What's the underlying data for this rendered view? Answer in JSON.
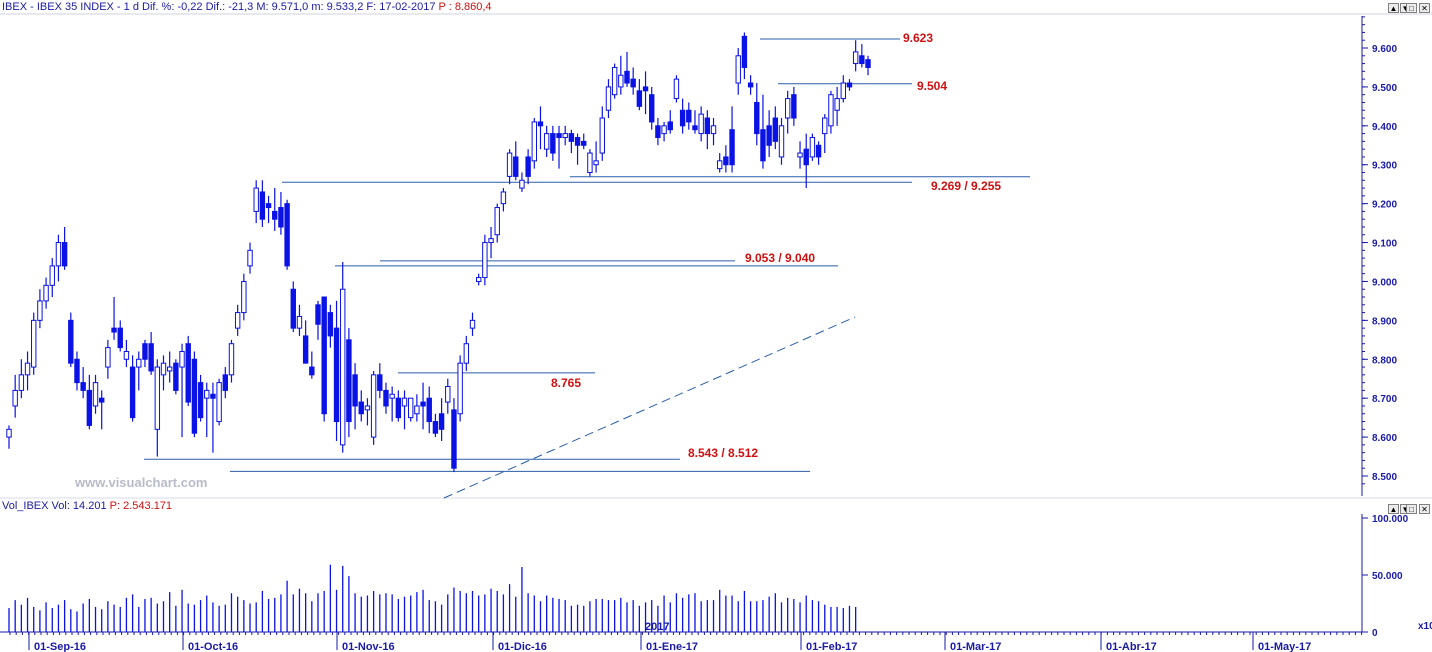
{
  "header": {
    "info": "IBEX - IBEX 35 INDEX - 1 d Dif. %: -0,22 Dif.: -21,3 M: 9.571,0 m: 9.533,2 F: 17-02-2017",
    "price": "P : 8.860,4"
  },
  "volume_header": {
    "info": "Vol_IBEX Vol: 14.201",
    "price": "P: 2.543.171"
  },
  "window_buttons": [
    "▲",
    "▼",
    "□",
    "✕"
  ],
  "watermark": "www.visualchart.com",
  "colors": {
    "axis": "#1a1aa6",
    "candle": "#0a12e6",
    "level_label": "#d01010",
    "line": "#2a5ea8",
    "background": "#ffffff"
  },
  "chart_data": [
    {
      "type": "candlestick",
      "title": "IBEX 35 INDEX",
      "y_ticks": [
        "9.600",
        "9.500",
        "9.400",
        "9.300",
        "9.200",
        "9.100",
        "9.000",
        "8.900",
        "8.800",
        "8.700",
        "8.600",
        "8.500"
      ],
      "ylim": [
        8460,
        9700
      ],
      "x_ticks": [
        "01-Sep-16",
        "01-Oct-16",
        "01-Nov-16",
        "01-Dic-16",
        "01-Ene-17",
        "01-Feb-17",
        "01-Mar-17",
        "01-Abr-17",
        "01-May-17"
      ],
      "year_marker": "2017",
      "candles": [
        [
          8600,
          8630,
          8570,
          8620
        ],
        [
          8680,
          8760,
          8650,
          8720
        ],
        [
          8720,
          8800,
          8700,
          8760
        ],
        [
          8760,
          8820,
          8720,
          8790
        ],
        [
          8780,
          8920,
          8760,
          8900
        ],
        [
          8900,
          8980,
          8880,
          8950
        ],
        [
          8950,
          9010,
          8930,
          8990
        ],
        [
          8990,
          9060,
          8960,
          9040
        ],
        [
          9040,
          9120,
          9000,
          9100
        ],
        [
          9100,
          9140,
          9030,
          9040
        ],
        [
          8900,
          8920,
          8780,
          8790
        ],
        [
          8800,
          8820,
          8720,
          8740
        ],
        [
          8740,
          8780,
          8700,
          8720
        ],
        [
          8720,
          8760,
          8620,
          8630
        ],
        [
          8680,
          8760,
          8660,
          8740
        ],
        [
          8700,
          8720,
          8620,
          8690
        ],
        [
          8780,
          8850,
          8750,
          8830
        ],
        [
          8880,
          8960,
          8850,
          8870
        ],
        [
          8880,
          8900,
          8820,
          8830
        ],
        [
          8800,
          8850,
          8780,
          8820
        ],
        [
          8780,
          8810,
          8640,
          8650
        ],
        [
          8780,
          8820,
          8720,
          8800
        ],
        [
          8840,
          8850,
          8780,
          8800
        ],
        [
          8840,
          8870,
          8760,
          8770
        ],
        [
          8620,
          8800,
          8550,
          8780
        ],
        [
          8760,
          8810,
          8720,
          8790
        ],
        [
          8770,
          8820,
          8740,
          8780
        ],
        [
          8790,
          8800,
          8710,
          8720
        ],
        [
          8780,
          8840,
          8600,
          8820
        ],
        [
          8840,
          8860,
          8680,
          8690
        ],
        [
          8800,
          8820,
          8600,
          8610
        ],
        [
          8740,
          8760,
          8640,
          8650
        ],
        [
          8700,
          8740,
          8600,
          8720
        ],
        [
          8710,
          8740,
          8560,
          8700
        ],
        [
          8640,
          8750,
          8630,
          8740
        ],
        [
          8760,
          8780,
          8700,
          8720
        ],
        [
          8760,
          8850,
          8740,
          8840
        ],
        [
          8880,
          8940,
          8860,
          8920
        ],
        [
          8920,
          9020,
          8900,
          9000
        ],
        [
          9040,
          9100,
          9020,
          9080
        ],
        [
          9180,
          9260,
          9150,
          9240
        ],
        [
          9230,
          9260,
          9140,
          9160
        ],
        [
          9200,
          9220,
          9150,
          9190
        ],
        [
          9180,
          9240,
          9130,
          9160
        ],
        [
          9190,
          9230,
          9120,
          9140
        ],
        [
          9200,
          9210,
          9030,
          9040
        ],
        [
          8980,
          9000,
          8870,
          8880
        ],
        [
          8880,
          8940,
          8860,
          8910
        ],
        [
          8860,
          8900,
          8790,
          8790
        ],
        [
          8780,
          8820,
          8750,
          8760
        ],
        [
          8940,
          8950,
          8850,
          8890
        ],
        [
          8960,
          8960,
          8640,
          8660
        ],
        [
          8920,
          8940,
          8830,
          8860
        ],
        [
          8880,
          8950,
          8590,
          8640
        ],
        [
          8580,
          9050,
          8560,
          8980
        ],
        [
          8850,
          8880,
          8600,
          8640
        ],
        [
          8760,
          8790,
          8620,
          8680
        ],
        [
          8690,
          8720,
          8640,
          8660
        ],
        [
          8670,
          8700,
          8630,
          8680
        ],
        [
          8600,
          8770,
          8580,
          8760
        ],
        [
          8760,
          8790,
          8700,
          8720
        ],
        [
          8720,
          8740,
          8660,
          8680
        ],
        [
          8700,
          8730,
          8640,
          8710
        ],
        [
          8700,
          8720,
          8640,
          8650
        ],
        [
          8680,
          8720,
          8620,
          8700
        ],
        [
          8650,
          8700,
          8640,
          8700
        ],
        [
          8660,
          8710,
          8640,
          8680
        ],
        [
          8690,
          8740,
          8620,
          8680
        ],
        [
          8700,
          8730,
          8610,
          8640
        ],
        [
          8640,
          8660,
          8600,
          8610
        ],
        [
          8660,
          8700,
          8590,
          8620
        ],
        [
          8690,
          8750,
          8660,
          8730
        ],
        [
          8670,
          8700,
          8510,
          8520
        ],
        [
          8660,
          8810,
          8640,
          8790
        ],
        [
          8790,
          8860,
          8770,
          8840
        ],
        [
          8880,
          8920,
          8860,
          8900
        ],
        [
          9000,
          9020,
          8990,
          9010
        ],
        [
          9010,
          9120,
          8990,
          9100
        ],
        [
          9100,
          9140,
          9060,
          9110
        ],
        [
          9120,
          9200,
          9100,
          9190
        ],
        [
          9200,
          9240,
          9180,
          9230
        ],
        [
          9270,
          9340,
          9250,
          9330
        ],
        [
          9320,
          9360,
          9260,
          9270
        ],
        [
          9240,
          9280,
          9230,
          9260
        ],
        [
          9320,
          9340,
          9250,
          9270
        ],
        [
          9310,
          9420,
          9290,
          9410
        ],
        [
          9410,
          9450,
          9340,
          9400
        ],
        [
          9340,
          9400,
          9320,
          9380
        ],
        [
          9380,
          9400,
          9310,
          9330
        ],
        [
          9380,
          9400,
          9290,
          9370
        ],
        [
          9370,
          9400,
          9350,
          9380
        ],
        [
          9380,
          9390,
          9330,
          9360
        ],
        [
          9370,
          9380,
          9300,
          9350
        ],
        [
          9360,
          9380,
          9340,
          9350
        ],
        [
          9280,
          9340,
          9270,
          9330
        ],
        [
          9300,
          9360,
          9280,
          9310
        ],
        [
          9330,
          9450,
          9310,
          9420
        ],
        [
          9440,
          9520,
          9420,
          9500
        ],
        [
          9480,
          9560,
          9470,
          9550
        ],
        [
          9500,
          9580,
          9480,
          9530
        ],
        [
          9540,
          9590,
          9500,
          9510
        ],
        [
          9520,
          9550,
          9480,
          9500
        ],
        [
          9490,
          9520,
          9440,
          9450
        ],
        [
          9500,
          9540,
          9430,
          9490
        ],
        [
          9480,
          9500,
          9390,
          9410
        ],
        [
          9400,
          9420,
          9350,
          9370
        ],
        [
          9380,
          9410,
          9360,
          9400
        ],
        [
          9410,
          9440,
          9380,
          9390
        ],
        [
          9470,
          9530,
          9460,
          9520
        ],
        [
          9440,
          9470,
          9380,
          9400
        ],
        [
          9440,
          9460,
          9390,
          9410
        ],
        [
          9400,
          9440,
          9380,
          9390
        ],
        [
          9380,
          9450,
          9360,
          9430
        ],
        [
          9420,
          9440,
          9340,
          9380
        ],
        [
          9380,
          9420,
          9350,
          9400
        ],
        [
          9290,
          9330,
          9280,
          9310
        ],
        [
          9320,
          9350,
          9280,
          9300
        ],
        [
          9390,
          9450,
          9280,
          9300
        ],
        [
          9510,
          9600,
          9480,
          9580
        ],
        [
          9630,
          9640,
          9520,
          9550
        ],
        [
          9510,
          9530,
          9480,
          9500
        ],
        [
          9460,
          9510,
          9350,
          9380
        ],
        [
          9390,
          9480,
          9290,
          9310
        ],
        [
          9400,
          9440,
          9320,
          9350
        ],
        [
          9420,
          9450,
          9340,
          9360
        ],
        [
          9320,
          9420,
          9300,
          9400
        ],
        [
          9420,
          9490,
          9380,
          9470
        ],
        [
          9480,
          9500,
          9400,
          9420
        ],
        [
          9320,
          9360,
          9290,
          9330
        ],
        [
          9340,
          9380,
          9240,
          9300
        ],
        [
          9320,
          9380,
          9310,
          9370
        ],
        [
          9350,
          9360,
          9300,
          9320
        ],
        [
          9380,
          9430,
          9330,
          9420
        ],
        [
          9400,
          9490,
          9380,
          9480
        ],
        [
          9440,
          9500,
          9400,
          9470
        ],
        [
          9470,
          9530,
          9460,
          9510
        ],
        [
          9510,
          9520,
          9490,
          9500
        ],
        [
          9560,
          9620,
          9540,
          9590
        ],
        [
          9580,
          9610,
          9550,
          9560
        ],
        [
          9570,
          9580,
          9530,
          9550
        ]
      ],
      "levels": [
        {
          "label": "9.623"
        },
        {
          "label": "9.504"
        },
        {
          "label": "9.269 / 9.255"
        },
        {
          "label": "9.053 / 9.040"
        },
        {
          "label": "8.765"
        },
        {
          "label": "8.543 / 8.512"
        }
      ]
    },
    {
      "type": "bar",
      "title": "Vol_IBEX",
      "y_ticks": [
        "100.000",
        "50.000",
        "0"
      ],
      "ylim": [
        0,
        100000
      ],
      "unit_marker": "x10",
      "values": [
        21000,
        28000,
        24000,
        30000,
        22000,
        19000,
        26000,
        21000,
        24000,
        28000,
        20000,
        18000,
        25000,
        29000,
        22000,
        20000,
        27000,
        24000,
        22000,
        30000,
        33000,
        22000,
        29000,
        30000,
        25000,
        27000,
        35000,
        23000,
        37000,
        25000,
        24000,
        28000,
        32000,
        26000,
        23000,
        24000,
        34000,
        31000,
        28000,
        25000,
        26000,
        36000,
        29000,
        30000,
        33000,
        45000,
        33000,
        38000,
        34000,
        27000,
        34000,
        36000,
        59000,
        37000,
        58000,
        49000,
        34000,
        31000,
        32000,
        36000,
        33000,
        34000,
        33000,
        29000,
        31000,
        32000,
        35000,
        37000,
        28000,
        27000,
        24000,
        33000,
        39000,
        36000,
        34000,
        36000,
        32000,
        33000,
        38000,
        36000,
        33000,
        42000,
        31000,
        57000,
        34000,
        32000,
        27000,
        32000,
        30000,
        29000,
        28000,
        23000,
        24000,
        23000,
        27000,
        29000,
        29000,
        28000,
        28000,
        30000,
        26000,
        28000,
        23000,
        26000,
        28000,
        23000,
        32000,
        26000,
        34000,
        30000,
        33000,
        34000,
        27000,
        28000,
        28000,
        37000,
        32000,
        32000,
        27000,
        36000,
        27000,
        27000,
        28000,
        31000,
        34000,
        26000,
        30000,
        29000,
        26000,
        32000,
        28000,
        27000,
        24000,
        22000,
        22000,
        21000,
        23000,
        22000
      ]
    }
  ]
}
